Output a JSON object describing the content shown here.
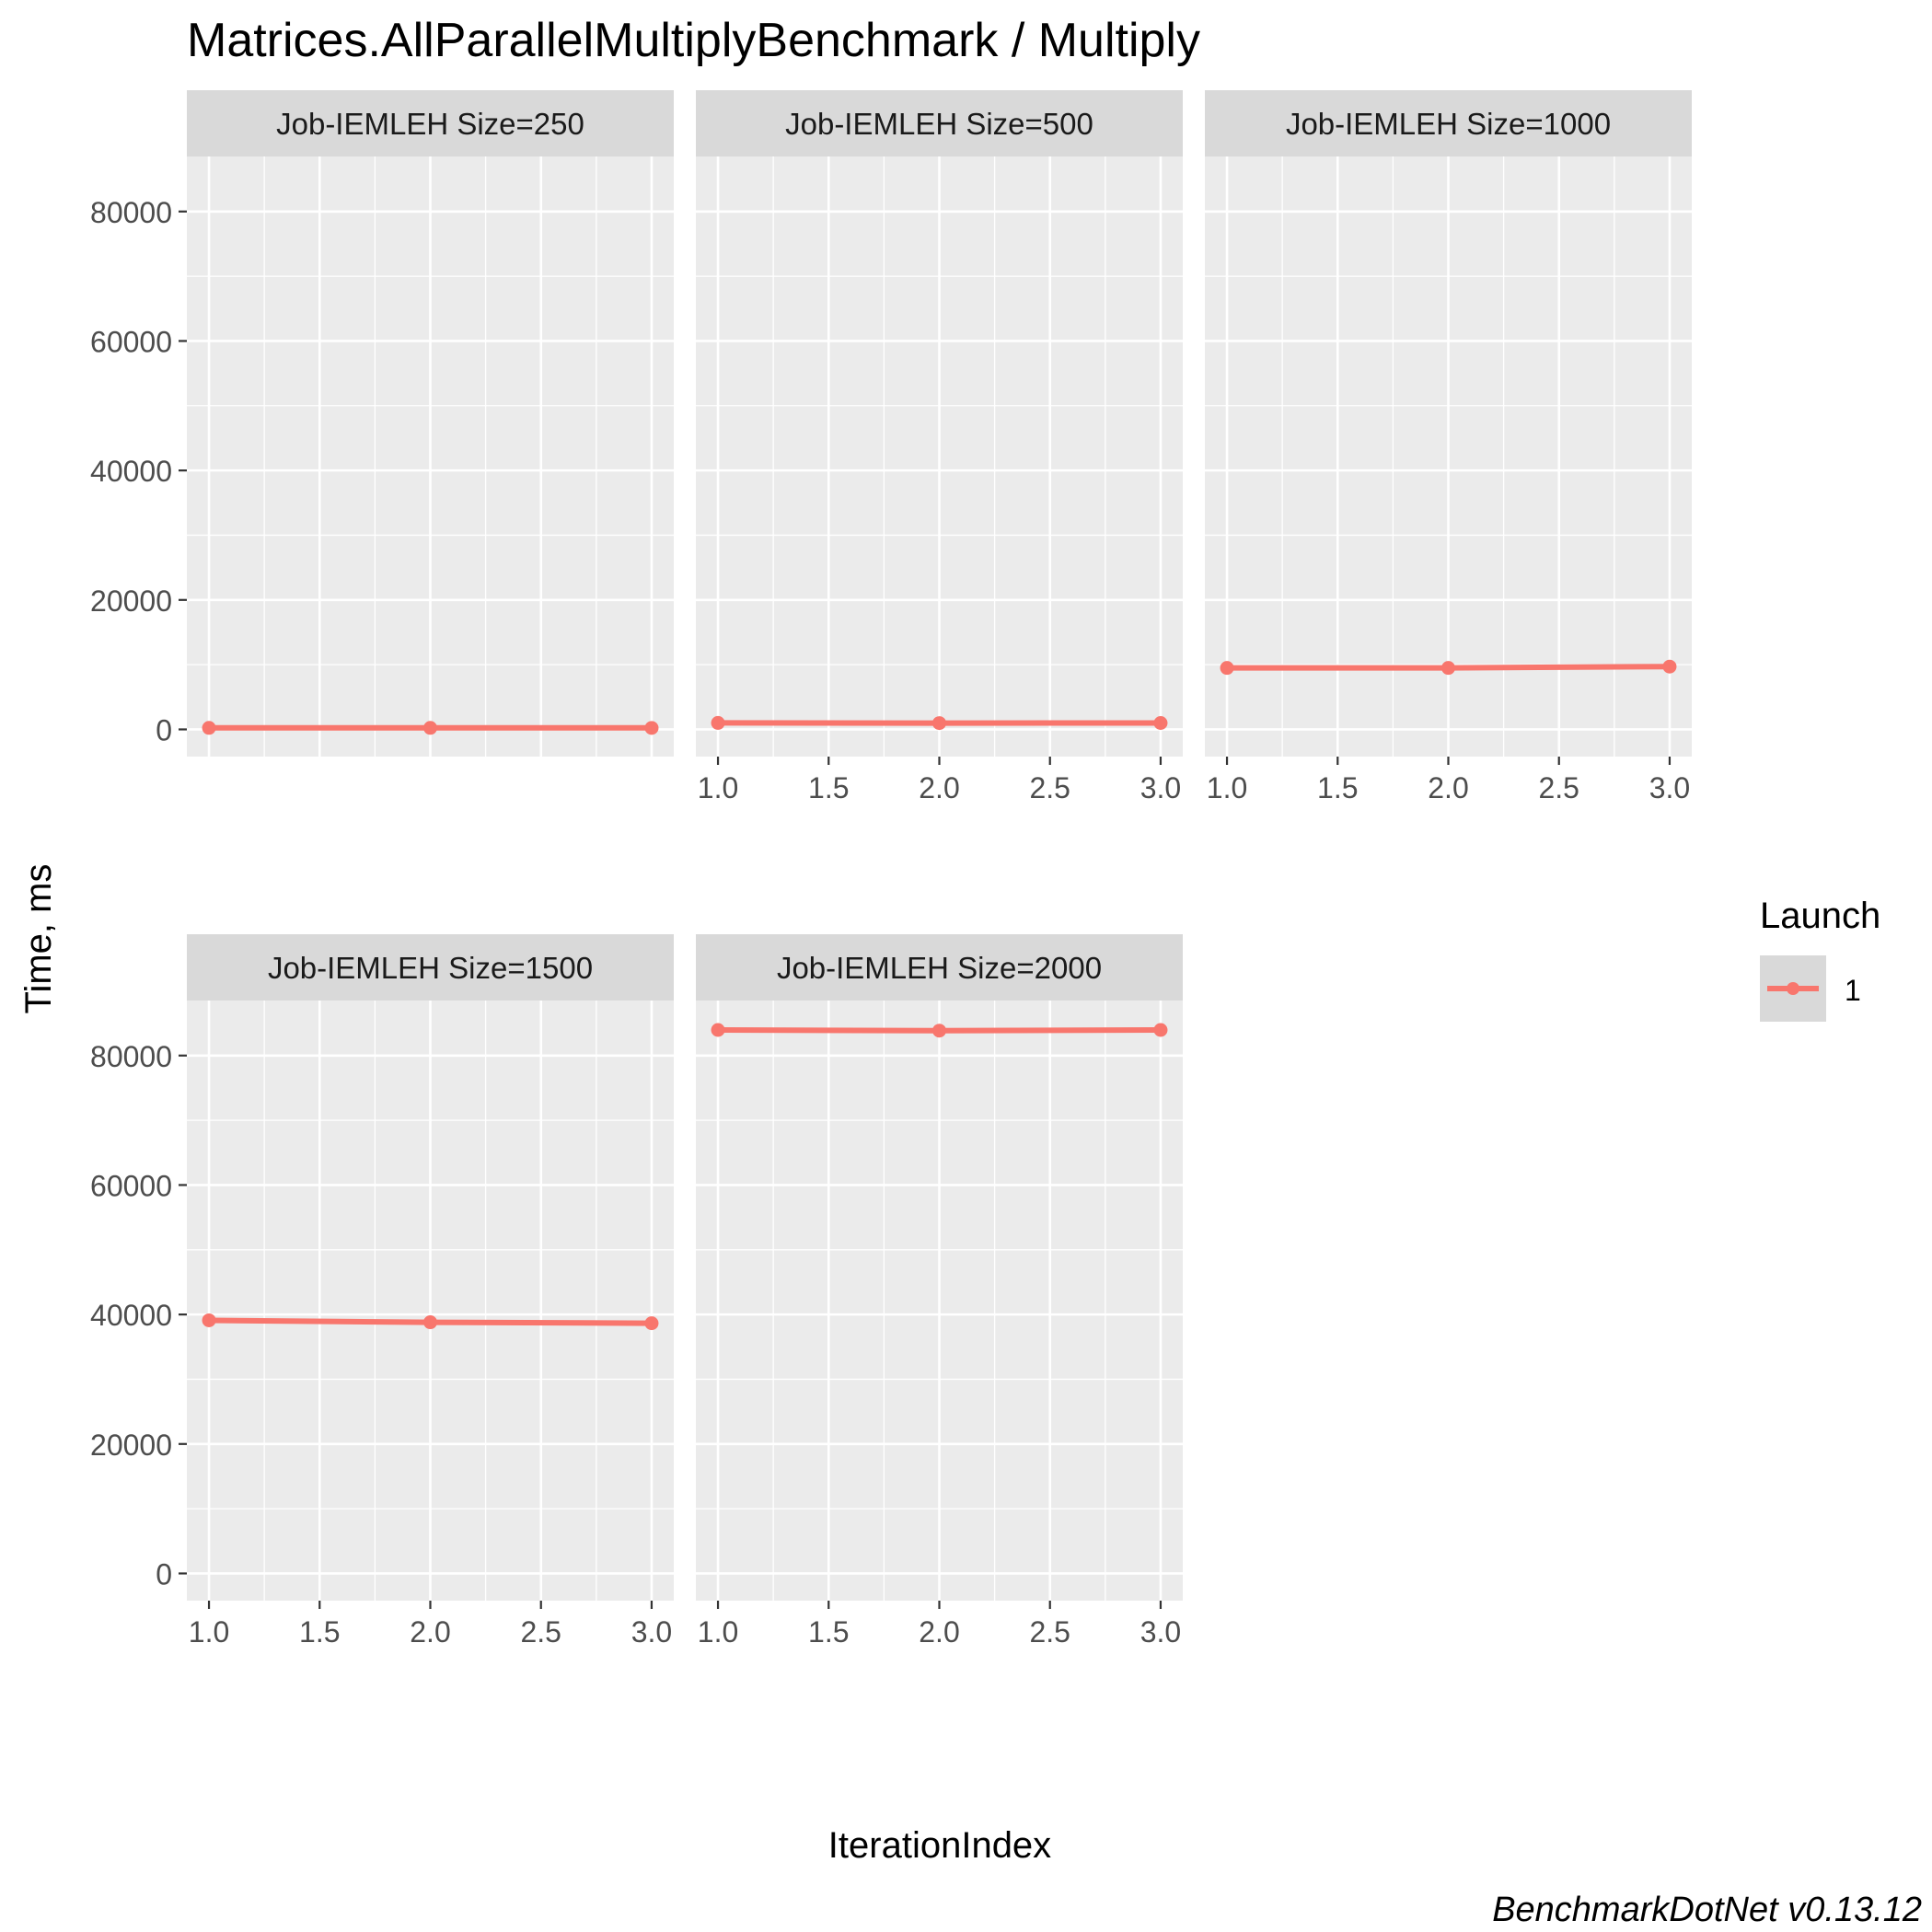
{
  "chart_data": {
    "type": "line",
    "title": "Matrices.AllParallelMultiplyBenchmark / Multiply",
    "xlabel": "IterationIndex",
    "ylabel": "Time, ms",
    "caption": "BenchmarkDotNet v0.13.12",
    "xlim": [
      0.9,
      3.1
    ],
    "ylim": [
      -4200,
      88500
    ],
    "x_ticks": [
      1.0,
      1.5,
      2.0,
      2.5,
      3.0
    ],
    "x_tick_labels": [
      "1.0",
      "1.5",
      "2.0",
      "2.5",
      "3.0"
    ],
    "y_ticks": [
      0,
      20000,
      40000,
      60000,
      80000
    ],
    "y_tick_labels": [
      "0",
      "20000",
      "40000",
      "60000",
      "80000"
    ],
    "grid": true,
    "legend": {
      "title": "Launch",
      "placement": "right",
      "entries": [
        {
          "label": "1",
          "color": "#F8766D"
        }
      ]
    },
    "line_color": "#F8766D",
    "panel_background": "#EBEBEB",
    "strip_background": "#D9D9D9",
    "facets": [
      {
        "label": "Job-IEMLEH Size=250",
        "x": [
          1,
          2,
          3
        ],
        "y": [
          240,
          235,
          230
        ]
      },
      {
        "label": "Job-IEMLEH Size=500",
        "x": [
          1,
          2,
          3
        ],
        "y": [
          1000,
          980,
          990
        ]
      },
      {
        "label": "Job-IEMLEH Size=1000",
        "x": [
          1,
          2,
          3
        ],
        "y": [
          9500,
          9500,
          9700
        ]
      },
      {
        "label": "Job-IEMLEH Size=1500",
        "x": [
          1,
          2,
          3
        ],
        "y": [
          39100,
          38800,
          38650
        ]
      },
      {
        "label": "Job-IEMLEH Size=2000",
        "x": [
          1,
          2,
          3
        ],
        "y": [
          83950,
          83850,
          83950
        ]
      }
    ]
  }
}
